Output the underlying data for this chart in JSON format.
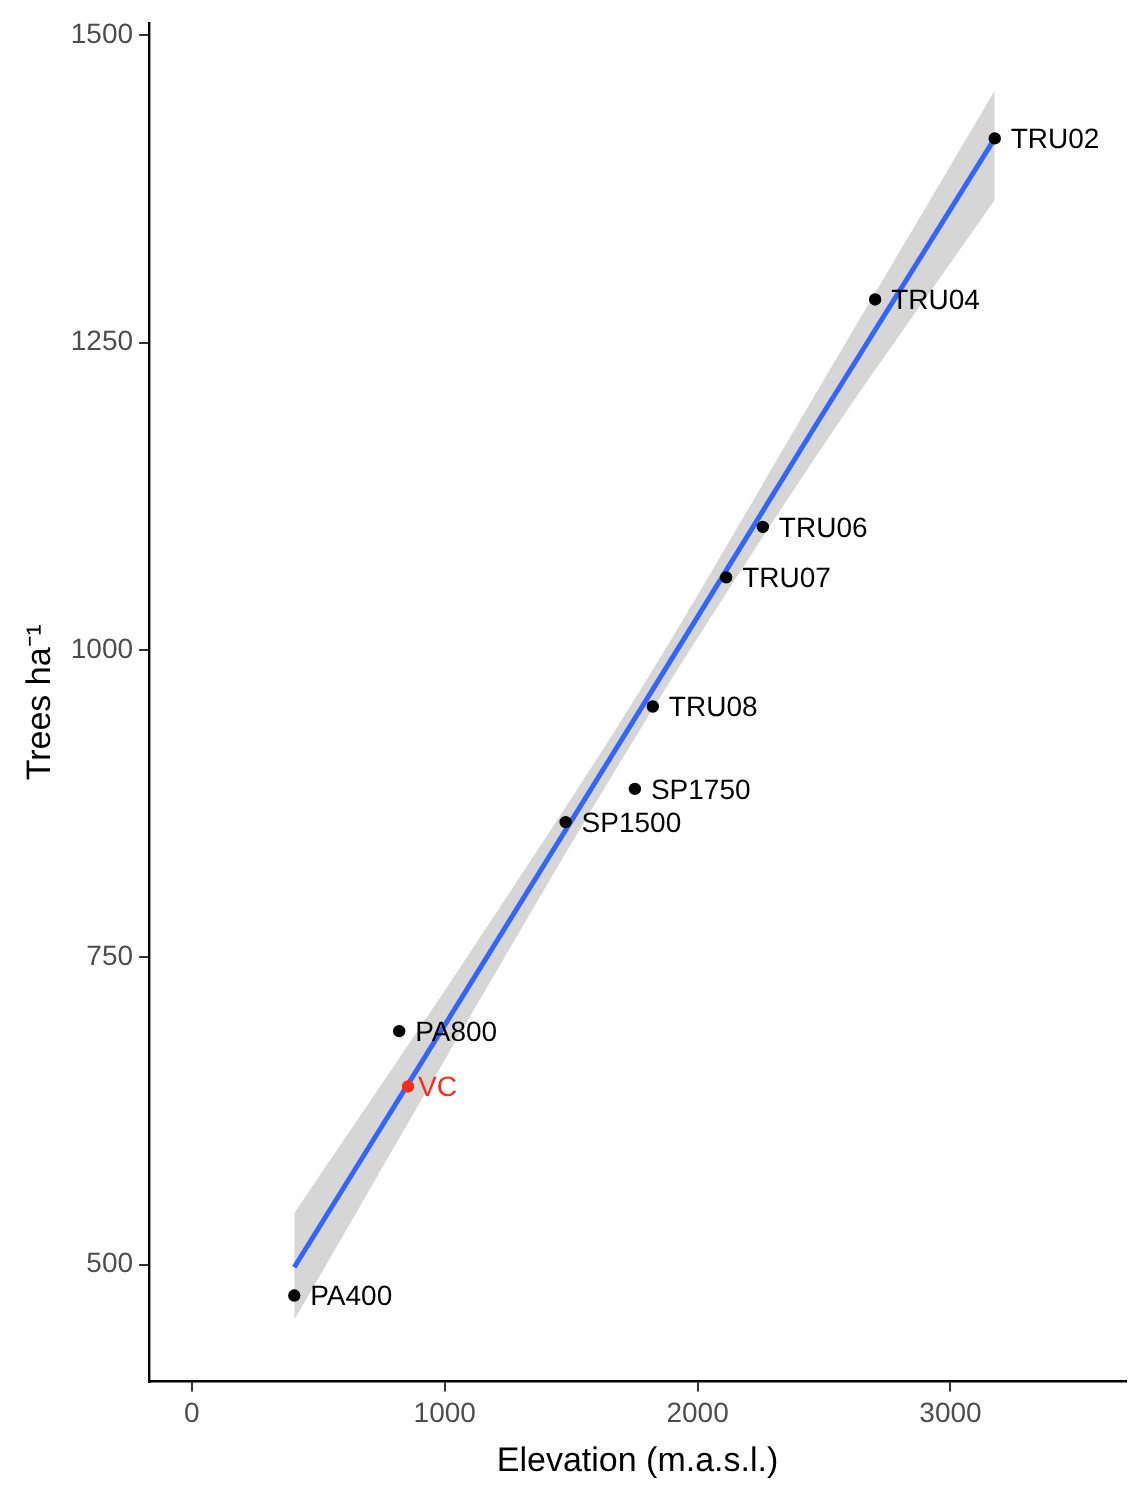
{
  "chart_data": {
    "type": "scatter",
    "xlabel": "Elevation (m.a.s.l.)",
    "ylabel": "Trees ha⁻¹",
    "xlim": [
      -169,
      3694
    ],
    "xticks": [
      0,
      1000,
      2000,
      3000
    ],
    "ylim": [
      405,
      1510
    ],
    "yticks": [
      500,
      750,
      1000,
      1250,
      1500
    ],
    "grid": false,
    "legend": false,
    "marker": "circle",
    "series": [
      {
        "type": "line",
        "marker": "none",
        "color": "#3366ff",
        "x": [
          405,
          1100,
          1790,
          2480,
          3175
        ],
        "values": [
          498,
          728,
          957,
          1187,
          1416
        ],
        "lower": [
          455,
          702,
          941,
          1161,
          1366
        ],
        "upper": [
          542,
          754,
          973,
          1213,
          1455
        ]
      },
      {
        "color": "#000000",
        "x": [
          405,
          820,
          1478,
          1752,
          1823,
          2113,
          2258,
          2702,
          3175
        ],
        "values": [
          475,
          690,
          860,
          887,
          954,
          1059,
          1100,
          1285,
          1416
        ]
      },
      {
        "name": "VC",
        "color": "#ff2a1a",
        "x": [
          855
        ],
        "values": [
          645
        ]
      }
    ],
    "annotations": [
      {
        "text": "PA400",
        "x": 405,
        "y": 475
      },
      {
        "text": "PA800",
        "x": 820,
        "y": 690
      },
      {
        "text": "SP1500",
        "x": 1478,
        "y": 860
      },
      {
        "text": "SP1750",
        "x": 1752,
        "y": 887
      },
      {
        "text": "TRU08",
        "x": 1823,
        "y": 954
      },
      {
        "text": "TRU07",
        "x": 2113,
        "y": 1059
      },
      {
        "text": "TRU06",
        "x": 2258,
        "y": 1100
      },
      {
        "text": "TRU04",
        "x": 2702,
        "y": 1285
      },
      {
        "text": "TRU02",
        "x": 3175,
        "y": 1416
      }
    ]
  }
}
